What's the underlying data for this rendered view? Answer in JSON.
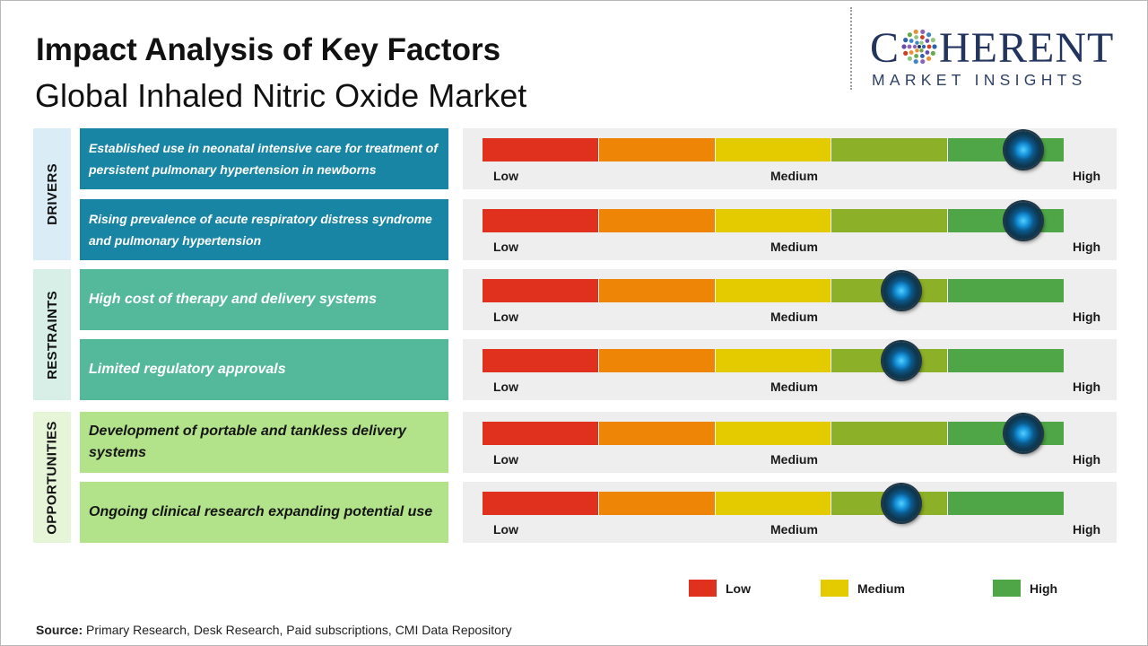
{
  "header": {
    "title": "Impact Analysis of Key Factors",
    "subtitle": "Global Inhaled Nitric Oxide Market"
  },
  "logo": {
    "top_left": "C",
    "top_right": "HERENT",
    "bottom": "MARKET INSIGHTS"
  },
  "colors": {
    "low": "#e0301e",
    "low_medium": "#ee8506",
    "medium": "#e3cb00",
    "medium_high": "#8cb027",
    "high": "#4ea646",
    "drivers": "#1985a5",
    "restraints": "#53b99a",
    "opportunities": "#b2e28a"
  },
  "gauge_labels": {
    "low": "Low",
    "medium": "Medium",
    "high": "High"
  },
  "chart_data": {
    "type": "gauge",
    "scale": {
      "min": 0,
      "max": 1,
      "segments": 5
    },
    "categories": [
      {
        "name": "DRIVERS",
        "factors": [
          {
            "label": "Established use in neonatal intensive care for treatment of persistent pulmonary hypertension in newborns",
            "level": 0.93
          },
          {
            "label": "Rising prevalence of acute respiratory distress syndrome and pulmonary hypertension",
            "level": 0.93
          }
        ]
      },
      {
        "name": "RESTRAINTS",
        "factors": [
          {
            "label": "High cost of therapy and delivery systems",
            "level": 0.72
          },
          {
            "label": "Limited regulatory approvals",
            "level": 0.72
          }
        ]
      },
      {
        "name": "OPPORTUNITIES",
        "factors": [
          {
            "label": "Development of portable and tankless delivery systems",
            "level": 0.93
          },
          {
            "label": "Ongoing clinical research expanding potential use",
            "level": 0.72
          }
        ]
      }
    ],
    "legend": [
      {
        "label": "Low",
        "color": "#e0301e"
      },
      {
        "label": "Medium",
        "color": "#e3cb00"
      },
      {
        "label": "High",
        "color": "#4ea646"
      }
    ]
  },
  "footer": {
    "source_label": "Source:",
    "source_text": " Primary Research, Desk Research, Paid subscriptions, CMI Data Repository"
  }
}
